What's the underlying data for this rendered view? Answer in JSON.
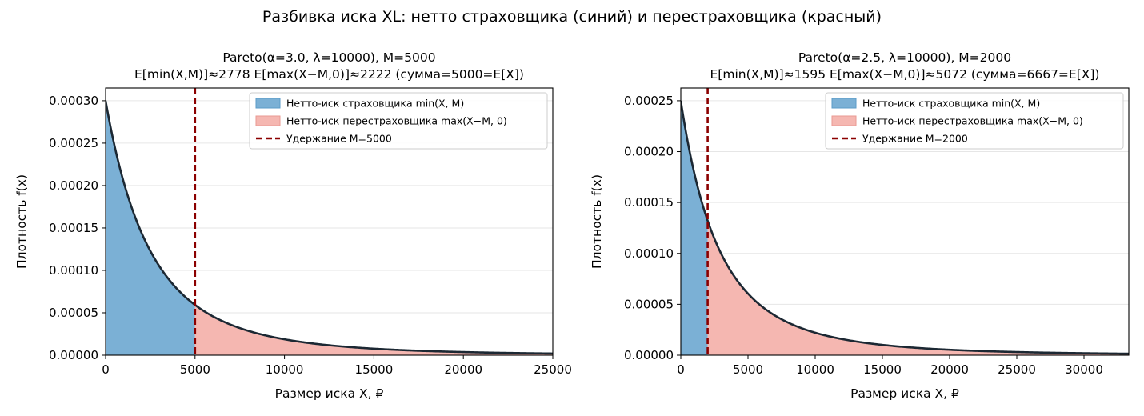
{
  "figure": {
    "suptitle": "Разбивка иска XL: нетто страховщика (синий) и перестраховщика (красный)"
  },
  "colors": {
    "insurer_fill": "#7bb0d5",
    "insurer_edge": "#5b9bc8",
    "reinsurer_fill": "#f5b7b1",
    "reinsurer_edge": "#e99a92",
    "retention_line": "#8b0000",
    "density_curve": "#1c2833",
    "grid": "#e6e6e6"
  },
  "chart_data": [
    {
      "type": "area",
      "title_line1": "Pareto(α=3.0, λ=10000), M=5000",
      "title_line2": "E[min(X,M)]≈2778  E[max(X−M,0)]≈2222  (сумма=5000=E[X])",
      "xlabel": "Размер иска X, ₽",
      "ylabel": "Плотность f(x)",
      "alpha": 3.0,
      "lambda": 10000,
      "retention": 5000,
      "xlim": [
        0,
        25000
      ],
      "ylim": [
        0,
        0.000315
      ],
      "xticks": [
        0,
        5000,
        10000,
        15000,
        20000,
        25000
      ],
      "xtick_labels": [
        "0",
        "5000",
        "10000",
        "15000",
        "20000",
        "25000"
      ],
      "yticks": [
        0,
        5e-05,
        0.0001,
        0.00015,
        0.0002,
        0.00025,
        0.0003
      ],
      "ytick_labels": [
        "0.00000",
        "0.00005",
        "0.00010",
        "0.00015",
        "0.00020",
        "0.00025",
        "0.00030"
      ],
      "grid": "horizontal",
      "legend_position": "top-right",
      "legend": [
        {
          "label": "Нетто-иск страховщика min(X, M)",
          "kind": "fill-insurer"
        },
        {
          "label": "Нетто-иск перестраховщика max(X−M, 0)",
          "kind": "fill-reinsurer"
        },
        {
          "label": "Удержание M=5000",
          "kind": "dashed-line"
        }
      ]
    },
    {
      "type": "area",
      "title_line1": "Pareto(α=2.5, λ=10000), M=2000",
      "title_line2": "E[min(X,M)]≈1595  E[max(X−M,0)]≈5072  (сумма=6667=E[X])",
      "xlabel": "Размер иска X, ₽",
      "ylabel": "Плотность f(x)",
      "alpha": 2.5,
      "lambda": 10000,
      "retention": 2000,
      "xlim": [
        0,
        33333
      ],
      "ylim": [
        0,
        0.0002625
      ],
      "xticks": [
        0,
        5000,
        10000,
        15000,
        20000,
        25000,
        30000
      ],
      "xtick_labels": [
        "0",
        "5000",
        "10000",
        "15000",
        "20000",
        "25000",
        "30000"
      ],
      "yticks": [
        0,
        5e-05,
        0.0001,
        0.00015,
        0.0002,
        0.00025
      ],
      "ytick_labels": [
        "0.00000",
        "0.00005",
        "0.00010",
        "0.00015",
        "0.00020",
        "0.00025"
      ],
      "grid": "horizontal",
      "legend_position": "top-right",
      "legend": [
        {
          "label": "Нетто-иск страховщика min(X, M)",
          "kind": "fill-insurer"
        },
        {
          "label": "Нетто-иск перестраховщика max(X−M, 0)",
          "kind": "fill-reinsurer"
        },
        {
          "label": "Удержание M=2000",
          "kind": "dashed-line"
        }
      ]
    }
  ]
}
